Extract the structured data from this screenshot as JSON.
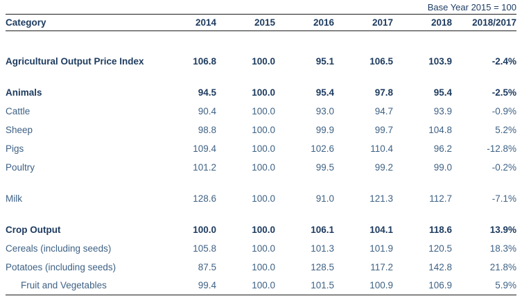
{
  "header": {
    "base_year_note": "Base Year 2015 = 100"
  },
  "columns": {
    "category": "Category",
    "years": [
      "2014",
      "2015",
      "2016",
      "2017",
      "2018",
      "2018/2017"
    ]
  },
  "rows": [
    {
      "label": "Agricultural Output Price Index",
      "values": [
        "106.8",
        "100.0",
        "95.1",
        "106.5",
        "103.9",
        "-2.4%"
      ]
    },
    {
      "label": "Animals",
      "values": [
        "94.5",
        "100.0",
        "95.4",
        "97.8",
        "95.4",
        "-2.5%"
      ]
    },
    {
      "label": "Cattle",
      "values": [
        "90.4",
        "100.0",
        "93.0",
        "94.7",
        "93.9",
        "-0.9%"
      ]
    },
    {
      "label": "Sheep",
      "values": [
        "98.8",
        "100.0",
        "99.9",
        "99.7",
        "104.8",
        "5.2%"
      ]
    },
    {
      "label": "Pigs",
      "values": [
        "109.4",
        "100.0",
        "102.6",
        "110.4",
        "96.2",
        "-12.8%"
      ]
    },
    {
      "label": "Poultry",
      "values": [
        "101.2",
        "100.0",
        "99.5",
        "99.2",
        "99.0",
        "-0.2%"
      ]
    },
    {
      "label": "Milk",
      "values": [
        "128.6",
        "100.0",
        "91.0",
        "121.3",
        "112.7",
        "-7.1%"
      ]
    },
    {
      "label": "Crop Output",
      "values": [
        "100.0",
        "100.0",
        "106.1",
        "104.1",
        "118.6",
        "13.9%"
      ]
    },
    {
      "label": "Cereals (including seeds)",
      "values": [
        "105.8",
        "100.0",
        "101.3",
        "101.9",
        "120.5",
        "18.3%"
      ]
    },
    {
      "label": "Potatoes (including seeds)",
      "values": [
        "87.5",
        "100.0",
        "128.5",
        "117.2",
        "142.8",
        "21.8%"
      ]
    },
    {
      "label": "Fruit and Vegetables",
      "values": [
        "99.4",
        "100.0",
        "101.5",
        "100.9",
        "106.9",
        "5.9%"
      ]
    }
  ],
  "colors": {
    "text_bold": "#1c3a5e",
    "text_regular": "#3e6184",
    "rule": "#1c1c1c"
  },
  "chart_data": {
    "type": "table",
    "title": "Base Year 2015 = 100",
    "columns": [
      "Category",
      "2014",
      "2015",
      "2016",
      "2017",
      "2018",
      "2018/2017"
    ],
    "rows": [
      [
        "Agricultural Output Price Index",
        106.8,
        100.0,
        95.1,
        106.5,
        103.9,
        "-2.4%"
      ],
      [
        "Animals",
        94.5,
        100.0,
        95.4,
        97.8,
        95.4,
        "-2.5%"
      ],
      [
        "Cattle",
        90.4,
        100.0,
        93.0,
        94.7,
        93.9,
        "-0.9%"
      ],
      [
        "Sheep",
        98.8,
        100.0,
        99.9,
        99.7,
        104.8,
        "5.2%"
      ],
      [
        "Pigs",
        109.4,
        100.0,
        102.6,
        110.4,
        96.2,
        "-12.8%"
      ],
      [
        "Poultry",
        101.2,
        100.0,
        99.5,
        99.2,
        99.0,
        "-0.2%"
      ],
      [
        "Milk",
        128.6,
        100.0,
        91.0,
        121.3,
        112.7,
        "-7.1%"
      ],
      [
        "Crop Output",
        100.0,
        100.0,
        106.1,
        104.1,
        118.6,
        "13.9%"
      ],
      [
        "Cereals (including seeds)",
        105.8,
        100.0,
        101.3,
        101.9,
        120.5,
        "18.3%"
      ],
      [
        "Potatoes (including seeds)",
        87.5,
        100.0,
        128.5,
        117.2,
        142.8,
        "21.8%"
      ],
      [
        "Fruit and Vegetables",
        99.4,
        100.0,
        101.5,
        100.9,
        106.9,
        "5.9%"
      ]
    ],
    "notes": "Agricultural output price index table, base year 2015 = 100; bold rows are section aggregates (Agricultural Output Price Index, Animals, Crop Output); last column is % change 2018/2017"
  }
}
